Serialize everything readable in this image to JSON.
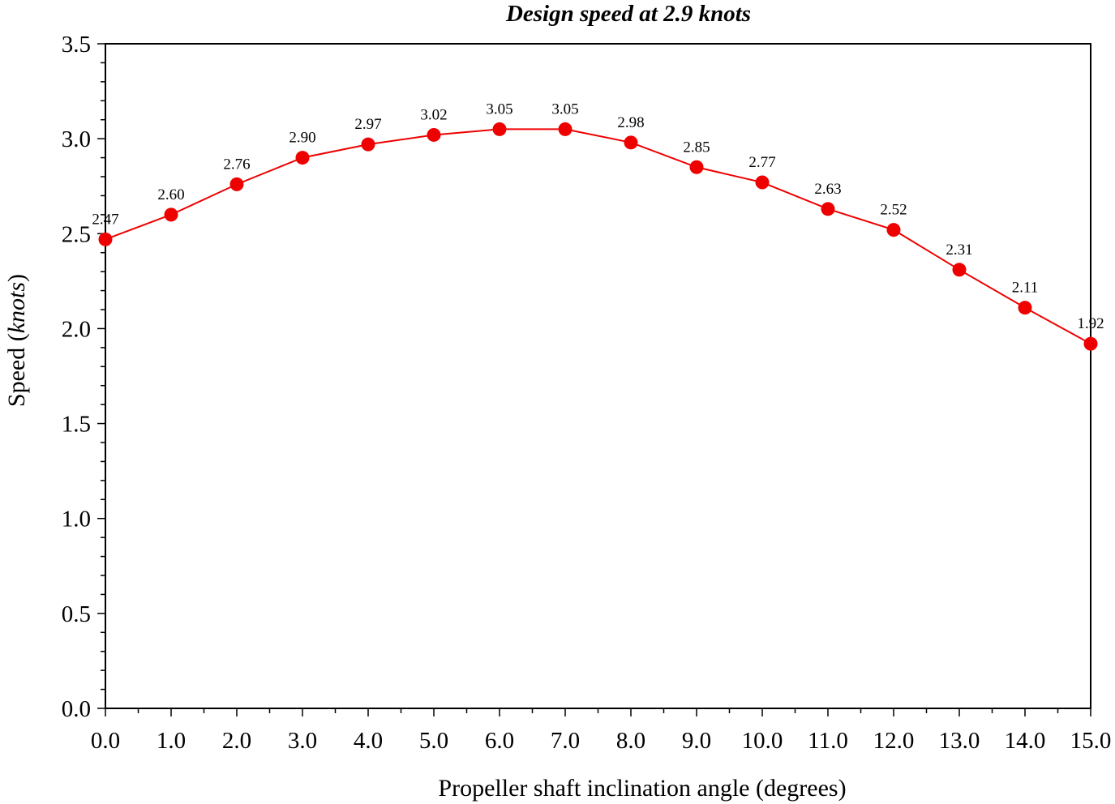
{
  "chart_data": {
    "type": "line",
    "title": "Design speed at 2.9 knots",
    "xlabel": "Propeller shaft inclination angle (degrees)",
    "ylabel": {
      "prefix": "Speed (",
      "unit": "knots",
      "suffix": ")"
    },
    "xlim": [
      0,
      15
    ],
    "ylim": [
      0,
      3.5
    ],
    "x_ticks": [
      "0.0",
      "1.0",
      "2.0",
      "3.0",
      "4.0",
      "5.0",
      "6.0",
      "7.0",
      "8.0",
      "9.0",
      "10.0",
      "11.0",
      "12.0",
      "13.0",
      "14.0",
      "15.0"
    ],
    "y_ticks": [
      "0.0",
      "0.5",
      "1.0",
      "1.5",
      "2.0",
      "2.5",
      "3.0",
      "3.5"
    ],
    "grid": false,
    "series": [
      {
        "color": "#ee0000",
        "x": [
          0,
          1,
          2,
          3,
          4,
          5,
          6,
          7,
          8,
          9,
          10,
          11,
          12,
          13,
          14,
          15
        ],
        "y": [
          2.47,
          2.6,
          2.76,
          2.9,
          2.97,
          3.02,
          3.05,
          3.05,
          2.98,
          2.85,
          2.77,
          2.63,
          2.52,
          2.31,
          2.11,
          1.92
        ],
        "labels": [
          "2.47",
          "2.60",
          "2.76",
          "2.90",
          "2.97",
          "3.02",
          "3.05",
          "3.05",
          "2.98",
          "2.85",
          "2.77",
          "2.63",
          "2.52",
          "2.31",
          "2.11",
          "1.92"
        ]
      }
    ]
  }
}
